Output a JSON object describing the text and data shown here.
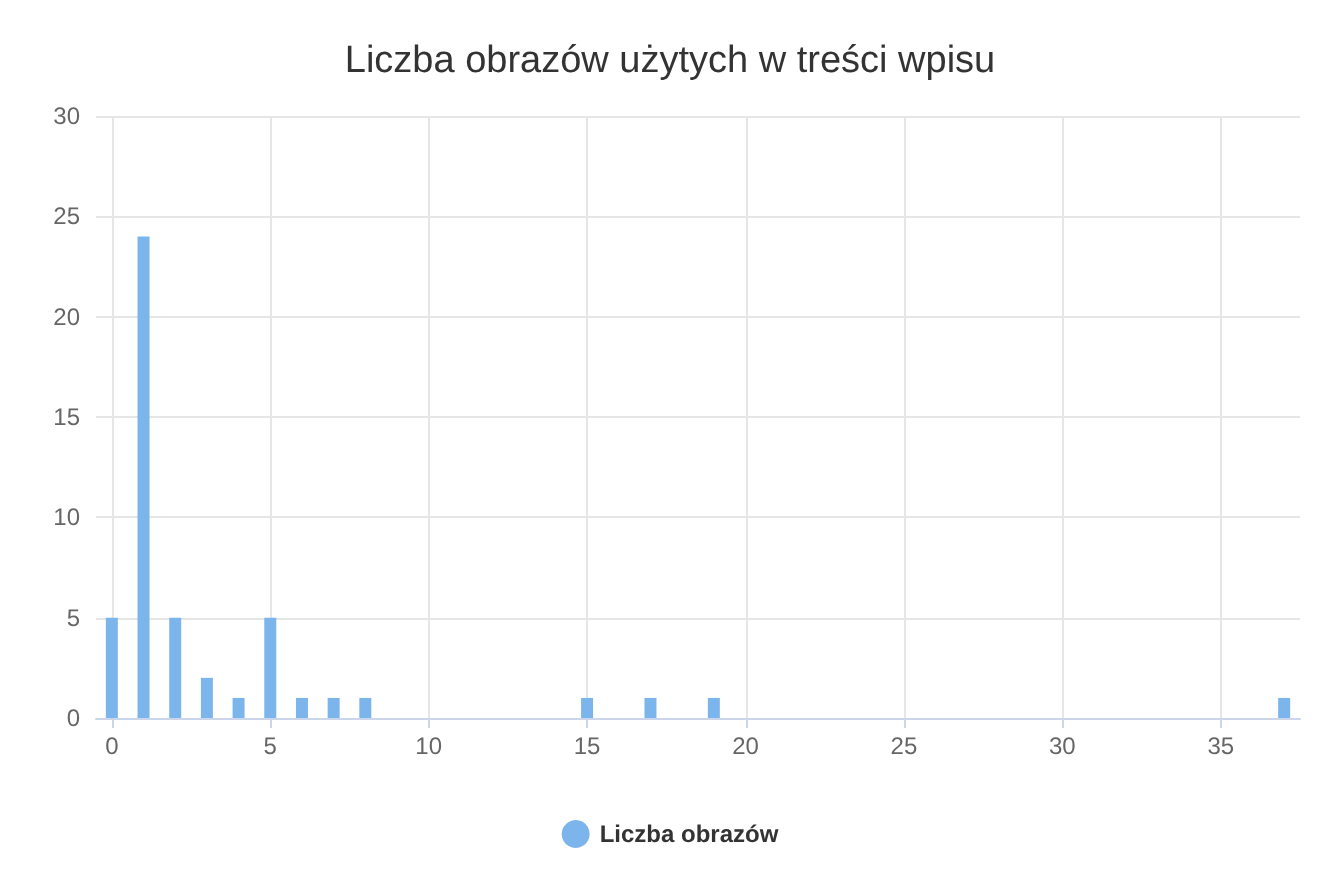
{
  "chart_data": {
    "type": "bar",
    "title": "Liczba obrazów użytych w treści wpisu",
    "x": [
      0,
      1,
      2,
      3,
      4,
      5,
      6,
      7,
      8,
      15,
      17,
      19,
      37
    ],
    "series": [
      {
        "name": "Liczba obrazów",
        "color": "#7cb5ec",
        "values": [
          5,
          24,
          5,
          2,
          1,
          5,
          1,
          1,
          1,
          1,
          1,
          1,
          1
        ]
      }
    ],
    "xlim": [
      -0.5,
      37.5
    ],
    "xticks": [
      0,
      5,
      10,
      15,
      20,
      25,
      30,
      35
    ],
    "ylim": [
      0,
      30
    ],
    "yticks": [
      0,
      5,
      10,
      15,
      20,
      25,
      30
    ],
    "grid": true,
    "legend": "bottom"
  }
}
